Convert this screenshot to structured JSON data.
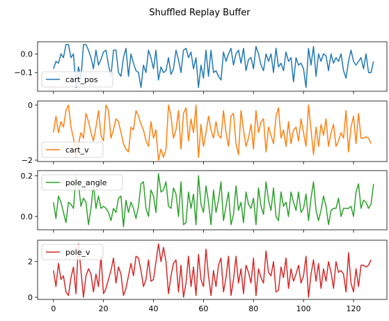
{
  "chart_data": {
    "type": "line",
    "title": "Shuffled Replay Buffer",
    "xlim": [
      -6.35,
      133.35
    ],
    "x_ticks": [
      0,
      20,
      40,
      60,
      80,
      100,
      120
    ],
    "x_tick_labels": [
      "0",
      "20",
      "40",
      "60",
      "80",
      "100",
      "120"
    ],
    "legend_placement": "upper-left",
    "grid": false,
    "panels": [
      {
        "name": "cart_pos",
        "color": "#1f77b4",
        "ylim": [
          -0.2,
          0.065
        ],
        "y_ticks": [
          0.0,
          -0.1
        ],
        "y_tick_labels": [
          "0.0",
          "−0.1"
        ],
        "values": [
          -0.08,
          -0.04,
          -0.05,
          0.0,
          -0.02,
          0.05,
          0.05,
          -0.02,
          0.0,
          -0.18,
          -0.07,
          -0.13,
          0.05,
          0.05,
          0.02,
          -0.02,
          -0.08,
          0.02,
          -0.06,
          -0.03,
          0.01,
          0.02,
          -0.06,
          -0.12,
          0.02,
          0.02,
          -0.1,
          -0.12,
          -0.02,
          0.03,
          -0.12,
          0.0,
          -0.05,
          -0.09,
          -0.1,
          -0.18,
          -0.06,
          -0.1,
          0.02,
          -0.02,
          -0.08,
          0.02,
          -0.14,
          -0.07,
          -0.1,
          -0.09,
          -0.02,
          -0.11,
          -0.08,
          0.02,
          -0.03,
          -0.1,
          0.02,
          0.03,
          -0.02,
          0.01,
          -0.08,
          -0.02,
          -0.18,
          -0.06,
          -0.13,
          0.02,
          -0.12,
          0.02,
          -0.1,
          -0.09,
          -0.12,
          -0.14,
          0.01,
          -0.04,
          0.0,
          0.03,
          -0.06,
          0.0,
          0.02,
          -0.05,
          0.03,
          -0.09,
          -0.03,
          -0.02,
          -0.08,
          0.04,
          0.0,
          -0.06,
          -0.09,
          0.0,
          -0.04,
          0.0,
          -0.1,
          0.03,
          -0.07,
          -0.05,
          -0.09,
          0.01,
          -0.04,
          -0.02,
          -0.15,
          -0.02,
          -0.06,
          -0.05,
          -0.08,
          -0.18,
          0.03,
          -0.06,
          0.04,
          -0.12,
          0.0,
          -0.04,
          0.0,
          -0.01,
          -0.09,
          0.0,
          -0.05,
          -0.02,
          -0.04,
          0.0,
          -0.09,
          -0.13,
          -0.04,
          0.02,
          -0.04,
          -0.06,
          -0.04,
          -0.02,
          -0.08,
          0.0,
          -0.1,
          -0.1,
          -0.04
        ]
      },
      {
        "name": "cart_v",
        "color": "#ff7f0e",
        "ylim": [
          -2.05,
          0.15
        ],
        "y_ticks": [
          0,
          -2
        ],
        "y_tick_labels": [
          "0",
          "−2"
        ],
        "values": [
          -1.0,
          -0.4,
          -1.0,
          -0.6,
          -0.8,
          -0.2,
          0.0,
          -0.8,
          -1.2,
          -1.9,
          -1.4,
          -1.0,
          -1.2,
          -0.3,
          -0.6,
          -1.0,
          -1.3,
          -0.8,
          -0.2,
          -1.1,
          -1.3,
          0.0,
          -0.2,
          -1.2,
          -0.9,
          -0.5,
          -0.6,
          -1.0,
          -1.4,
          -1.6,
          -1.7,
          -0.8,
          -0.9,
          -0.2,
          -0.4,
          -0.7,
          -0.9,
          -1.3,
          -1.5,
          -0.6,
          -1.2,
          -0.9,
          -2.0,
          -1.6,
          -1.9,
          -1.6,
          0.0,
          -0.4,
          -1.2,
          -0.9,
          -0.2,
          -1.6,
          -0.3,
          -0.1,
          -1.3,
          -0.5,
          -1.0,
          0.0,
          -1.9,
          -0.7,
          -1.5,
          -1.0,
          -0.4,
          -0.9,
          -1.2,
          -0.6,
          -1.1,
          -1.2,
          -0.2,
          -1.0,
          -1.5,
          -0.4,
          -0.3,
          -1.4,
          -1.8,
          -0.2,
          -0.9,
          -1.5,
          -1.2,
          -0.7,
          -1.6,
          -0.2,
          -1.0,
          -0.6,
          -0.5,
          -1.7,
          -0.8,
          -1.1,
          -1.4,
          -0.4,
          -0.1,
          -1.2,
          -0.9,
          -1.5,
          -0.6,
          -1.4,
          -0.9,
          -0.8,
          -1.3,
          -0.5,
          -1.0,
          -1.5,
          0.0,
          -0.9,
          -1.8,
          -0.8,
          -1.5,
          -0.7,
          -1.1,
          -0.5,
          -1.5,
          -1.0,
          -0.7,
          -1.5,
          -1.3,
          -1.0,
          -1.2,
          -0.2,
          -1.7,
          -0.8,
          -0.4,
          -1.4,
          -0.3,
          -1.2,
          -1.2,
          -1.15,
          -1.2,
          -1.4
        ]
      },
      {
        "name": "pole_angle",
        "color": "#2ca02c",
        "ylim": [
          -0.065,
          0.225
        ],
        "y_ticks": [
          0.2,
          0.0
        ],
        "y_tick_labels": [
          "0.2",
          "0.0"
        ],
        "values": [
          0.07,
          -0.01,
          0.1,
          0.07,
          0.02,
          -0.03,
          0.07,
          0.06,
          0.04,
          0.2,
          0.16,
          0.05,
          0.09,
          0.07,
          -0.04,
          0.04,
          0.16,
          0.04,
          0.1,
          0.04,
          0.05,
          0.04,
          0.02,
          -0.02,
          0.04,
          0.02,
          0.09,
          0.1,
          -0.05,
          0.08,
          0.02,
          0.07,
          0.04,
          -0.01,
          0.05,
          0.16,
          0.17,
          0.04,
          0.0,
          0.13,
          0.1,
          0.02,
          0.21,
          0.12,
          0.13,
          0.17,
          0.05,
          0.04,
          0.14,
          0.11,
          0.0,
          0.17,
          -0.04,
          -0.03,
          0.12,
          0.04,
          0.11,
          -0.04,
          0.2,
          0.06,
          0.02,
          0.15,
          0.07,
          -0.04,
          0.13,
          0.02,
          0.08,
          0.17,
          -0.02,
          0.05,
          0.12,
          -0.04,
          0.01,
          0.15,
          0.03,
          0.07,
          -0.03,
          0.12,
          0.06,
          0.04,
          0.09,
          -0.04,
          0.14,
          0.05,
          0.01,
          0.17,
          0.08,
          0.03,
          0.14,
          0.0,
          -0.02,
          0.12,
          0.05,
          0.07,
          0.0,
          0.12,
          0.07,
          0.03,
          0.12,
          0.02,
          0.04,
          0.11,
          -0.02,
          0.09,
          0.17,
          0.03,
          -0.02,
          0.03,
          0.1,
          0.05,
          -0.04,
          0.03,
          0.04,
          0.04,
          0.09,
          0.0,
          0.04,
          0.04,
          0.04,
          0.05,
          0.0,
          0.12,
          0.16,
          0.04,
          0.08,
          0.07,
          0.04,
          0.06,
          0.16
        ]
      },
      {
        "name": "pole_v",
        "color": "#d62728",
        "ylim": [
          -0.12,
          3.2
        ],
        "y_ticks": [
          2,
          0
        ],
        "y_tick_labels": [
          "2",
          "0"
        ],
        "values": [
          1.5,
          0.6,
          1.9,
          1.0,
          1.2,
          0.3,
          0.1,
          1.1,
          1.7,
          0.2,
          3.0,
          1.5,
          0.0,
          1.2,
          1.6,
          1.3,
          0.3,
          1.3,
          0.6,
          2.3,
          0.2,
          0.5,
          1.0,
          1.5,
          2.2,
          0.8,
          1.7,
          1.3,
          0.1,
          0.5,
          1.2,
          1.9,
          1.2,
          2.3,
          2.2,
          1.5,
          0.6,
          1.0,
          2.1,
          0.9,
          1.0,
          2.0,
          3.0,
          2.0,
          2.8,
          2.0,
          0.2,
          1.2,
          1.9,
          2.1,
          0.3,
          1.8,
          0.0,
          0.8,
          2.3,
          0.6,
          1.7,
          0.1,
          2.4,
          1.0,
          0.6,
          2.7,
          1.2,
          0.1,
          1.5,
          0.6,
          1.8,
          2.2,
          0.3,
          1.1,
          2.3,
          0.1,
          1.0,
          2.3,
          0.8,
          1.6,
          0.2,
          1.8,
          1.4,
          0.8,
          2.2,
          0.1,
          1.6,
          1.1,
          0.8,
          2.6,
          1.4,
          1.2,
          2.0,
          0.3,
          0.4,
          1.7,
          1.1,
          2.2,
          0.5,
          1.6,
          0.9,
          1.3,
          1.8,
          0.8,
          1.2,
          2.3,
          0.0,
          1.3,
          2.1,
          0.9,
          1.9,
          0.5,
          1.6,
          0.9,
          2.0,
          1.4,
          0.5,
          2.0,
          1.4,
          1.5,
          1.3,
          0.3,
          2.5,
          0.8,
          0.3,
          1.6,
          0.6,
          1.8,
          1.8,
          1.7,
          1.8,
          2.1
        ]
      }
    ]
  }
}
